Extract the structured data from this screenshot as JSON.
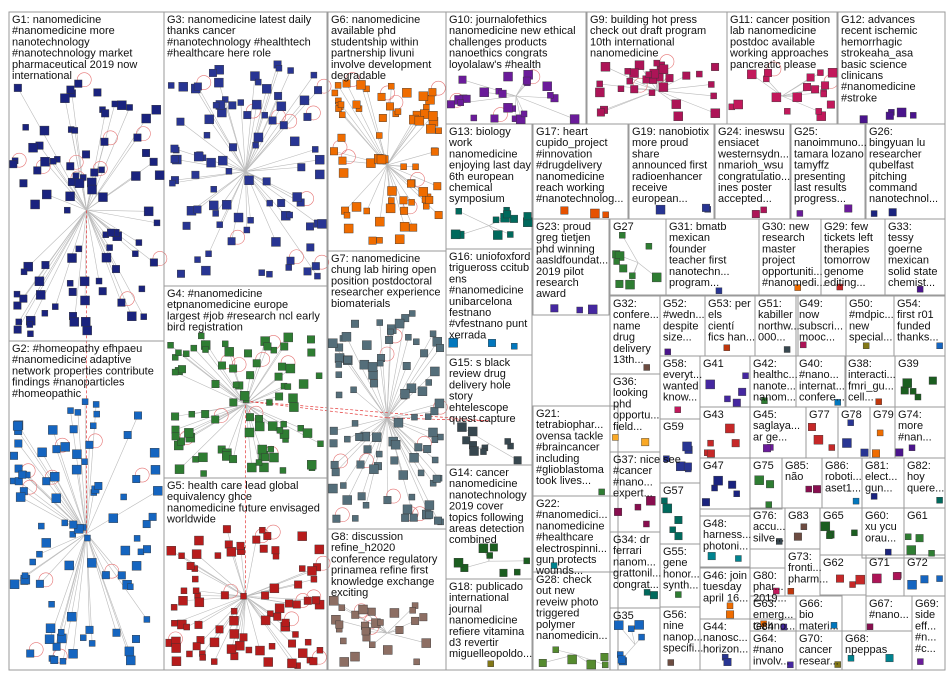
{
  "groups": [
    {
      "id": "G1",
      "lines": [
        "G1: nanomedicine",
        "#nanomedicine more",
        "nanotechnology",
        "#nanotechnology market",
        "pharmaceutical 2019 now",
        "international"
      ],
      "color": "#1a237e"
    },
    {
      "id": "G2",
      "lines": [
        "G2: #homeopathy efhpaeu",
        "#nanomedicine adaptive",
        "network properties contribute",
        "findings #nanoparticles",
        "#homeopathic"
      ],
      "color": "#1565c0"
    },
    {
      "id": "G3",
      "lines": [
        "G3: nanomedicine latest daily",
        "thanks cancer",
        "#nanotechnology #healthtech",
        "#healthcare here role"
      ],
      "color": "#283593"
    },
    {
      "id": "G4",
      "lines": [
        "G4: #nanomedicine",
        "etpnanomedicine europe",
        "largest #job #research ncl early",
        "bird registration"
      ],
      "color": "#2e7d32"
    },
    {
      "id": "G5",
      "lines": [
        "G5: health care lead global",
        "equivalency ghce",
        "nanomedicine future envisaged",
        "worldwide"
      ],
      "color": "#b71c1c"
    },
    {
      "id": "G6",
      "lines": [
        "G6: nanomedicine",
        "available phd",
        "studentship within",
        "partnership livuni",
        "involve development",
        "degradable"
      ],
      "color": "#ef6c00"
    },
    {
      "id": "G7",
      "lines": [
        "G7: nanomedicine",
        "chung lab hiring open",
        "position postdoctoral",
        "researcher experience",
        "biomaterials"
      ],
      "color": "#546e7a"
    },
    {
      "id": "G8",
      "lines": [
        "G8: discussion",
        "refine_h2020",
        "conference regulatory",
        "prinamea refine first",
        "knowledge exchange",
        "exciting"
      ],
      "color": "#8d6e63"
    },
    {
      "id": "G9",
      "lines": [
        "G9: building hot press",
        "check out draft program",
        "10th international",
        "nanomedicine"
      ],
      "color": "#ad1457"
    },
    {
      "id": "G10",
      "lines": [
        "G10: journalofethics",
        "nanomedicine new ethical",
        "challenges products",
        "nanoethics congrats",
        "loyolalaw's #health"
      ],
      "color": "#6a1b9a"
    },
    {
      "id": "G11",
      "lines": [
        "G11: cancer position",
        "lab nanomedicine",
        "postdoc available",
        "working approaches",
        "pancreatic please"
      ],
      "color": "#c2185b"
    },
    {
      "id": "G12",
      "lines": [
        "G12: advances",
        "recent ischemic",
        "hemorrhagic",
        "strokeaha_asa",
        "basic science",
        "clinicans",
        "#nanomedicine",
        "#stroke"
      ],
      "color": "#4a148c"
    },
    {
      "id": "G13",
      "lines": [
        "G13: biology",
        "work",
        "nanomedicine",
        "enjoying last day",
        "6th european",
        "chemical",
        "symposium"
      ],
      "color": "#00695c"
    },
    {
      "id": "G14",
      "lines": [
        "G14: cancer",
        "nanomedicine",
        "nanotechnology",
        "2019 cover",
        "topics following",
        "areas detection",
        "combined"
      ],
      "color": "#1b5e20"
    },
    {
      "id": "G15",
      "lines": [
        "G15: s black",
        "review drug",
        "delivery hole",
        "story",
        "ehtelescope",
        "quest capture"
      ],
      "color": "#37474f"
    },
    {
      "id": "G16",
      "lines": [
        "G16: uniofoxford",
        "trigueross ccitub",
        "ens",
        "#nanomedicine",
        "unibarcelona",
        "festnano",
        "#vfestnano punt",
        "xerrada"
      ],
      "color": "#0277bd"
    },
    {
      "id": "G17",
      "lines": [
        "G17: heart",
        "cupido_project",
        "#innovation",
        "#drugdelivery",
        "nanomedicine",
        "reach working",
        "#nanotechnolog..."
      ],
      "color": "#e65100"
    },
    {
      "id": "G18",
      "lines": [
        "G18: publicado",
        "international",
        "journal",
        "nanomedicine",
        "refiere vitamina",
        "d3 revertir",
        "miguelleopoldo..."
      ],
      "color": "#827717"
    },
    {
      "id": "G19",
      "lines": [
        "G19: nanobiotix",
        "more proud",
        "share",
        "announced first",
        "radioenhancer",
        "receive",
        "european..."
      ],
      "color": "#283593"
    },
    {
      "id": "G21",
      "lines": [
        "G21:",
        "tetrabiophar...",
        "ovensa tackle",
        "#braincancer",
        "including",
        "#glioblastoma",
        "took lives..."
      ],
      "color": "#2e7d32"
    },
    {
      "id": "G22",
      "lines": [
        "G22:",
        "#nanomedici...",
        "nanomedicine",
        "#healthcare",
        "electrospinni...",
        "gun protects",
        "wounds..."
      ],
      "color": "#00838f"
    },
    {
      "id": "G23",
      "lines": [
        "G23: proud",
        "greg tietjen",
        "phd winning",
        "aasldfoundat...",
        "2019 pilot",
        "research",
        "award"
      ],
      "color": "#4527a0"
    },
    {
      "id": "G24",
      "lines": [
        "G24: ineswsu",
        "ensiacet",
        "westernsydn...",
        "nmarioh_wsu",
        "congratulatio...",
        "ines poster",
        "accepted..."
      ],
      "color": "#ad1457"
    },
    {
      "id": "G25",
      "lines": [
        "G25:",
        "nanoimmuno...",
        "tamara lozano",
        "tamyffz",
        "presenting",
        "last results",
        "progress..."
      ],
      "color": "#6a1b9a"
    },
    {
      "id": "G26",
      "lines": [
        "G26:",
        "bingyuan lu",
        "researcher",
        "qubelfast",
        "pitching",
        "command",
        "nanotechnol..."
      ],
      "color": "#1a237e"
    },
    {
      "id": "G27",
      "lines": [
        "G27"
      ],
      "color": "#2e7d32"
    },
    {
      "id": "G28",
      "lines": [
        "G28: check",
        "out new",
        "reveiw photo",
        "triggered",
        "polymer",
        "nanomedicin..."
      ],
      "color": "#558b2f"
    },
    {
      "id": "G29",
      "lines": [
        "G29: few",
        "tickets left",
        "therapies",
        "tomorrow",
        "genome",
        "editing..."
      ],
      "color": "#c62828"
    },
    {
      "id": "G30",
      "lines": [
        "G30: new",
        "research",
        "master",
        "project",
        "opportuniti...",
        "#nanomedi..."
      ],
      "color": "#ef6c00"
    },
    {
      "id": "G31",
      "lines": [
        "G31: bmatb",
        "mexican",
        "founder",
        "teacher first",
        "nanotechn...",
        "program..."
      ],
      "color": "#283593"
    },
    {
      "id": "G32",
      "lines": [
        "G32:",
        "confere...",
        "name",
        "drug",
        "delivery",
        "13th..."
      ],
      "color": "#6d4c41"
    },
    {
      "id": "G33",
      "lines": [
        "G33:",
        "tessy",
        "goerne",
        "mexican",
        "solid state",
        "chemist..."
      ],
      "color": "#4a148c"
    },
    {
      "id": "G34",
      "lines": [
        "G34: dr",
        "ferrari",
        "nanom...",
        "grattonil...",
        "congrat..."
      ],
      "color": "#00695c"
    },
    {
      "id": "G35",
      "lines": [
        "G35"
      ],
      "color": "#1565c0"
    },
    {
      "id": "G36",
      "lines": [
        "G36:",
        "looking",
        "phd",
        "opportu...",
        "field..."
      ],
      "color": "#f9a825"
    },
    {
      "id": "G37",
      "lines": [
        "G37: nice see",
        "#cancer",
        "#nano...",
        "expert..."
      ],
      "color": "#880e4f"
    },
    {
      "id": "G38",
      "lines": [
        "G38:",
        "interacti...",
        "fmri_gu...",
        "cell..."
      ],
      "color": "#bf360c"
    },
    {
      "id": "G39",
      "lines": [
        "G39"
      ],
      "color": "#1b5e20"
    },
    {
      "id": "G40",
      "lines": [
        "G40:",
        "#nano...",
        "internat...",
        "confere..."
      ],
      "color": "#0277bd"
    },
    {
      "id": "G41",
      "lines": [
        "G41"
      ],
      "color": "#4527a0"
    },
    {
      "id": "G42",
      "lines": [
        "G42:",
        "healthc...",
        "nanote...",
        "nanom..."
      ],
      "color": "#2e7d32"
    },
    {
      "id": "G43",
      "lines": [
        "G43"
      ],
      "color": "#c62828"
    },
    {
      "id": "G44",
      "lines": [
        "G44:",
        "nanosc...",
        "horizon..."
      ],
      "color": "#283593"
    },
    {
      "id": "G45",
      "lines": [
        "G45:",
        "saglaya...",
        "ar ge..."
      ],
      "color": "#6a1b9a"
    },
    {
      "id": "G46",
      "lines": [
        "G46: join",
        "tuesday",
        "april 16..."
      ],
      "color": "#ef6c00"
    },
    {
      "id": "G47",
      "lines": [
        "G47"
      ],
      "color": "#1a237e"
    },
    {
      "id": "G48",
      "lines": [
        "G48:",
        "harness...",
        "photoni..."
      ],
      "color": "#00838f"
    },
    {
      "id": "G49",
      "lines": [
        "G49:",
        "now",
        "subscri...",
        "mooc..."
      ],
      "color": "#ad1457"
    },
    {
      "id": "G50",
      "lines": [
        "G50:",
        "#mdpic...",
        "new",
        "special..."
      ],
      "color": "#827717"
    },
    {
      "id": "G51",
      "lines": [
        "G51:",
        "kabiller",
        "northw...",
        "000..."
      ],
      "color": "#37474f"
    },
    {
      "id": "G52",
      "lines": [
        "G52:",
        "#wedn...",
        "despite",
        "size..."
      ],
      "color": "#4a148c"
    },
    {
      "id": "G53",
      "lines": [
        "G53: per",
        "els",
        "cientí",
        "fics han..."
      ],
      "color": "#bf360c"
    },
    {
      "id": "G54",
      "lines": [
        "G54:",
        "first r01",
        "funded",
        "thanks..."
      ],
      "color": "#1565c0"
    },
    {
      "id": "G55",
      "lines": [
        "G55:",
        "gene",
        "honor...",
        "synth..."
      ],
      "color": "#2e7d32"
    },
    {
      "id": "G56",
      "lines": [
        "G56:",
        "nine",
        "nanop...",
        "specifi..."
      ],
      "color": "#6d4c41"
    },
    {
      "id": "G57",
      "lines": [
        "G57"
      ],
      "color": "#00695c"
    },
    {
      "id": "G58",
      "lines": [
        "G58:",
        "everyt...",
        "wanted",
        "know..."
      ],
      "color": "#c2185b"
    },
    {
      "id": "G59",
      "lines": [
        "G59"
      ],
      "color": "#283593"
    },
    {
      "id": "G60",
      "lines": [
        "G60:",
        "xu ycu",
        "orau..."
      ],
      "color": "#1a237e"
    },
    {
      "id": "G61",
      "lines": [
        "G61"
      ],
      "color": "#2e7d32"
    },
    {
      "id": "G62",
      "lines": [
        "G62"
      ],
      "color": "#c62828"
    },
    {
      "id": "G63",
      "lines": [
        "G63:",
        "emerg...",
        "techno..."
      ],
      "color": "#ef6c00"
    },
    {
      "id": "G64",
      "lines": [
        "G64:",
        "#nano",
        "involv..."
      ],
      "color": "#4527a0"
    },
    {
      "id": "G65",
      "lines": [
        "G65"
      ],
      "color": "#1b5e20"
    },
    {
      "id": "G66",
      "lines": [
        "G66:",
        "bio",
        "materi..."
      ],
      "color": "#0277bd"
    },
    {
      "id": "G67",
      "lines": [
        "G67:",
        "#nano..."
      ],
      "color": "#880e4f"
    },
    {
      "id": "G68",
      "lines": [
        "G68:",
        "npeppas"
      ],
      "color": "#00838f"
    },
    {
      "id": "G69",
      "lines": [
        "G69:",
        "side",
        "eff...",
        "#n...",
        "#c..."
      ],
      "color": "#6a1b9a"
    },
    {
      "id": "G70",
      "lines": [
        "G70:",
        "cancer",
        "resear..."
      ],
      "color": "#827717"
    },
    {
      "id": "G71",
      "lines": [
        "G71"
      ],
      "color": "#ad1457"
    },
    {
      "id": "G72",
      "lines": [
        "G72"
      ],
      "color": "#1565c0"
    },
    {
      "id": "G73",
      "lines": [
        "G73:",
        "fronti...",
        "pharm..."
      ],
      "color": "#bf360c"
    },
    {
      "id": "G74",
      "lines": [
        "G74:",
        "more",
        "#nan..."
      ],
      "color": "#4a148c"
    },
    {
      "id": "G75",
      "lines": [
        "G75"
      ],
      "color": "#2e7d32"
    },
    {
      "id": "G76",
      "lines": [
        "G76:",
        "accu...",
        "silve..."
      ],
      "color": "#37474f"
    },
    {
      "id": "G77",
      "lines": [
        "G77"
      ],
      "color": "#c62828"
    },
    {
      "id": "G78",
      "lines": [
        "G78"
      ],
      "color": "#283593"
    },
    {
      "id": "G79",
      "lines": [
        "G79"
      ],
      "color": "#ef6c00"
    },
    {
      "id": "G80",
      "lines": [
        "G80:",
        "phar...",
        "2019..."
      ],
      "color": "#c2185b"
    },
    {
      "id": "G81",
      "lines": [
        "G81:",
        "elect...",
        "gun..."
      ],
      "color": "#1a237e"
    },
    {
      "id": "G82",
      "lines": [
        "G82:",
        "hoy",
        "quere..."
      ],
      "color": "#00695c"
    },
    {
      "id": "G83",
      "lines": [
        "G83"
      ],
      "color": "#6d4c41"
    },
    {
      "id": "G84",
      "lines": [
        "G84"
      ],
      "color": "#4527a0"
    },
    {
      "id": "G85",
      "lines": [
        "G85:",
        "não"
      ],
      "color": "#880e4f"
    },
    {
      "id": "G86",
      "lines": [
        "G86:",
        "roboti...",
        "aset1..."
      ],
      "color": "#0277bd"
    }
  ]
}
